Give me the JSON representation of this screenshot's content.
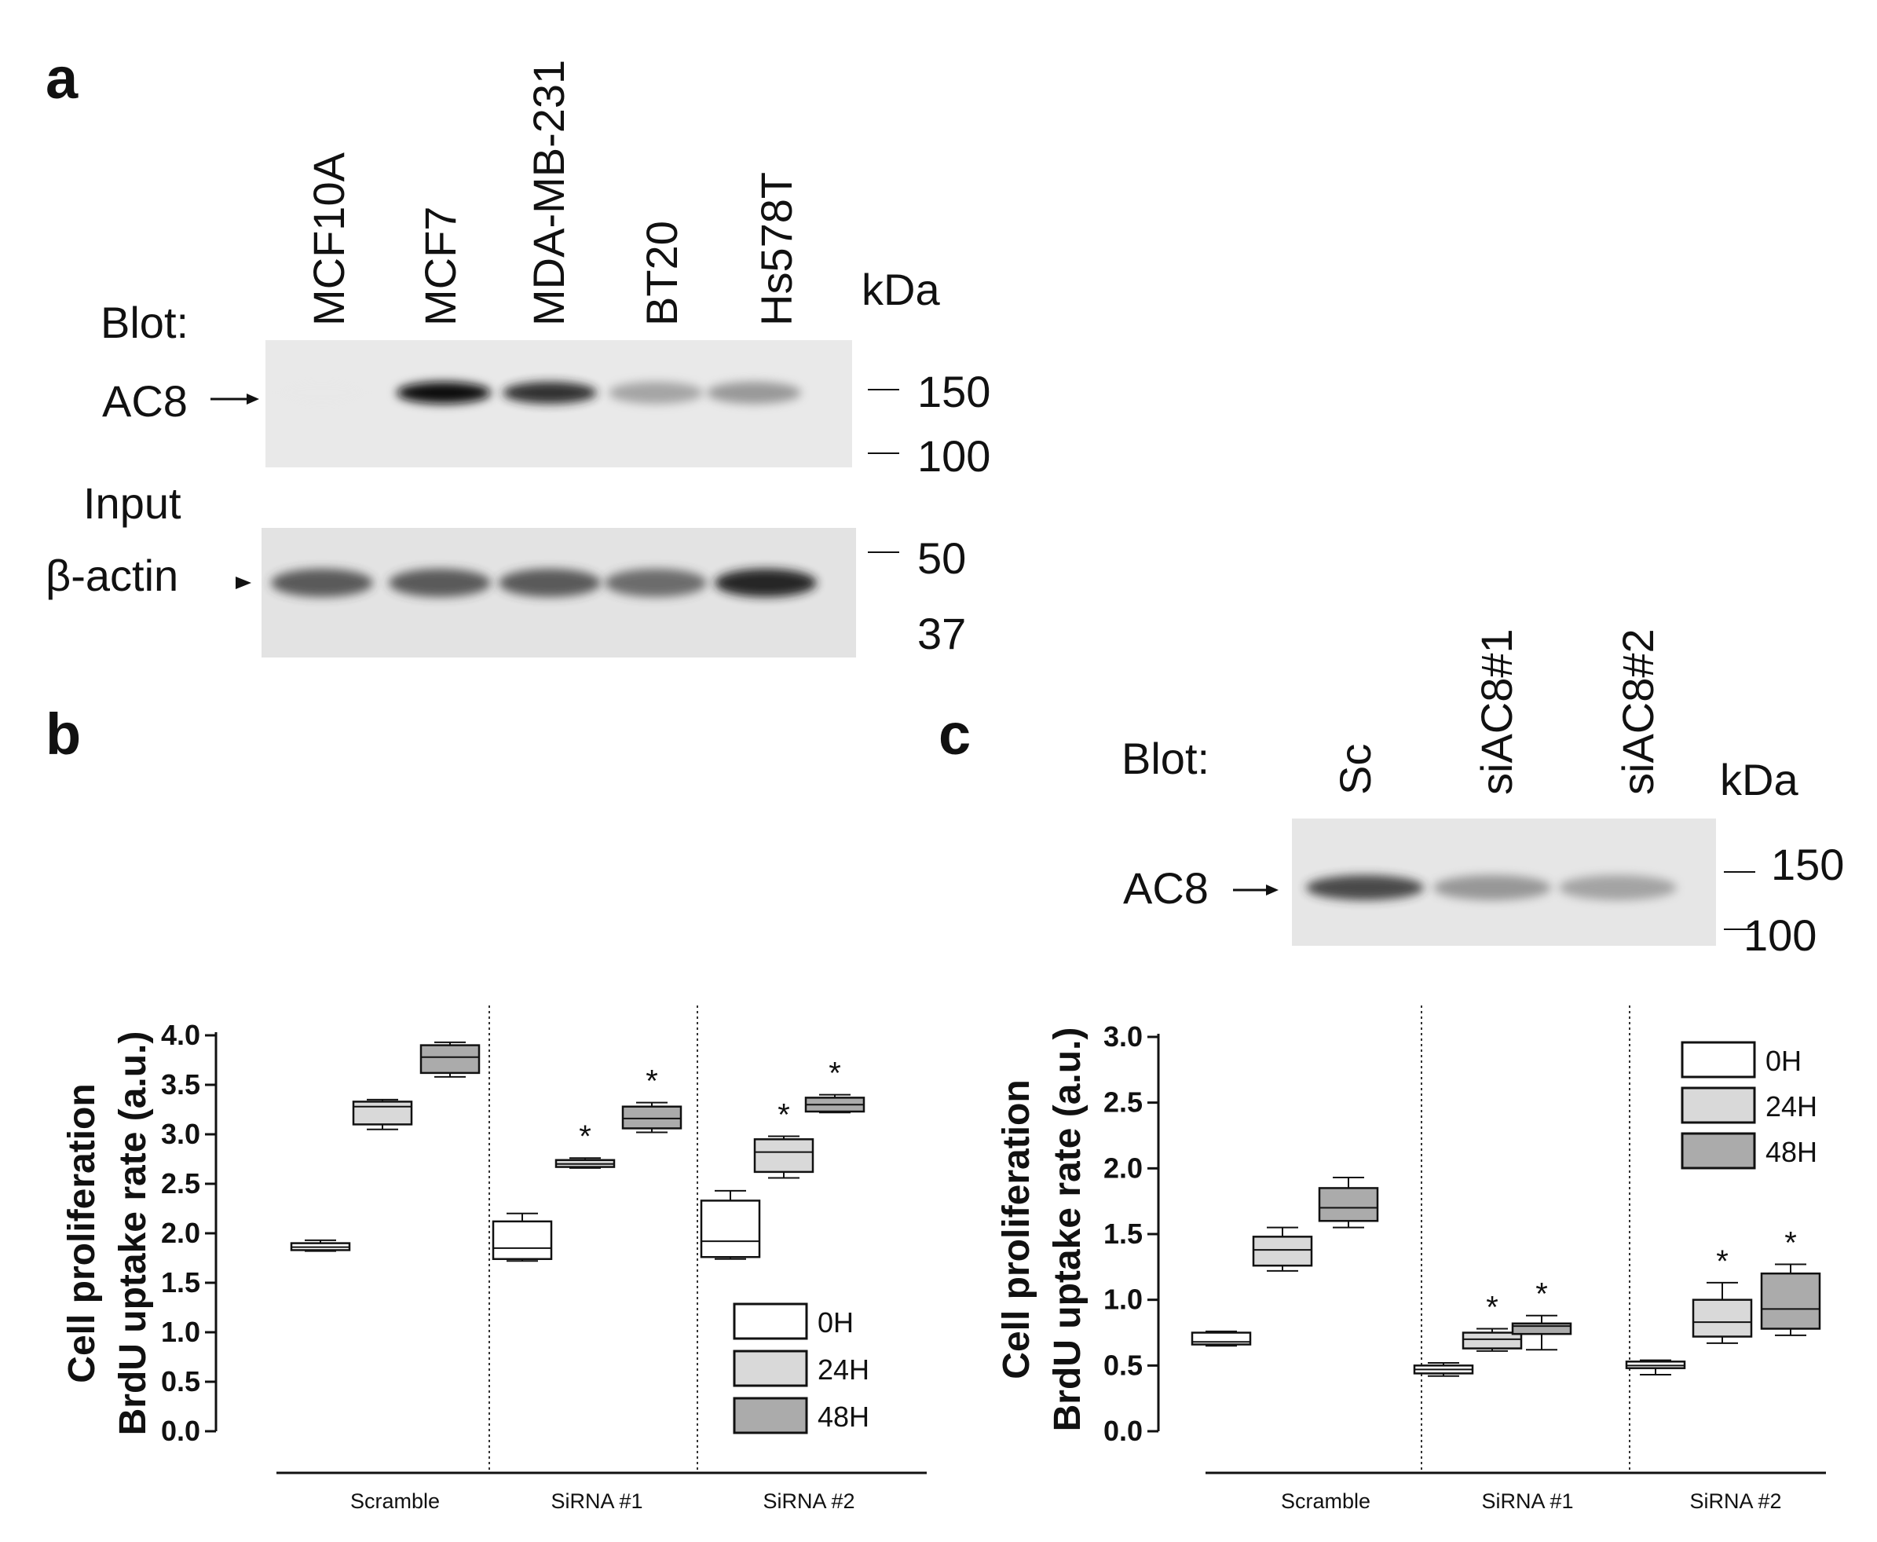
{
  "panels": {
    "a": {
      "letter": "a",
      "blot_label": "Blot:",
      "input_label": "Input",
      "protein_label": "AC8",
      "loading_label": "β-actin",
      "kda_label": "kDa",
      "lanes": [
        "MCF10A",
        "MCF7",
        "MDA-MB-231",
        "BT20",
        "Hs578T"
      ],
      "markers": [
        "150",
        "100",
        "50",
        "37"
      ],
      "ac8_band_intensity": [
        0.0,
        1.0,
        0.92,
        0.55,
        0.6
      ],
      "actin_band_intensity": [
        0.8,
        0.8,
        0.8,
        0.75,
        0.95
      ]
    },
    "b": {
      "letter": "b"
    },
    "c": {
      "letter": "c",
      "blot_label": "Blot:",
      "protein_label": "AC8",
      "kda_label": "kDa",
      "lanes": [
        "Sc",
        "siAC8#1",
        "siAC8#2"
      ],
      "markers": [
        "150",
        "100"
      ],
      "ac8_band_intensity": [
        0.85,
        0.6,
        0.55
      ]
    }
  },
  "chart_data": [
    {
      "type": "box",
      "panel": "b",
      "ylabel_lines": [
        "Cell proliferation",
        "BrdU uptake rate  (a.u.)"
      ],
      "xlabel": "",
      "ylim": [
        0,
        4.0
      ],
      "yticks": [
        "0.0",
        "0.5",
        "1.0",
        "1.5",
        "2.0",
        "2.5",
        "3.0",
        "3.5",
        "4.0"
      ],
      "categories": [
        "Scramble",
        "SiRNA #1",
        "SiRNA #2"
      ],
      "legend_position": "bottom-right",
      "series": [
        {
          "name": "0H",
          "color": "#ffffff",
          "boxes": [
            {
              "min": 1.82,
              "q1": 1.83,
              "median": 1.86,
              "q3": 1.9,
              "max": 1.93,
              "significant": false
            },
            {
              "min": 1.72,
              "q1": 1.74,
              "median": 1.85,
              "q3": 2.12,
              "max": 2.2,
              "significant": false
            },
            {
              "min": 1.74,
              "q1": 1.76,
              "median": 1.92,
              "q3": 2.33,
              "max": 2.43,
              "significant": false
            }
          ]
        },
        {
          "name": "24H",
          "color": "#d9d9d9",
          "boxes": [
            {
              "min": 3.05,
              "q1": 3.1,
              "median": 3.28,
              "q3": 3.33,
              "max": 3.35,
              "significant": false
            },
            {
              "min": 2.66,
              "q1": 2.67,
              "median": 2.7,
              "q3": 2.74,
              "max": 2.76,
              "significant": true
            },
            {
              "min": 2.56,
              "q1": 2.62,
              "median": 2.82,
              "q3": 2.95,
              "max": 2.98,
              "significant": true
            }
          ]
        },
        {
          "name": "48H",
          "color": "#ababab",
          "boxes": [
            {
              "min": 3.58,
              "q1": 3.62,
              "median": 3.78,
              "q3": 3.9,
              "max": 3.93,
              "significant": false
            },
            {
              "min": 3.02,
              "q1": 3.06,
              "median": 3.16,
              "q3": 3.28,
              "max": 3.32,
              "significant": true
            },
            {
              "min": 3.22,
              "q1": 3.23,
              "median": 3.3,
              "q3": 3.37,
              "max": 3.4,
              "significant": true
            }
          ]
        }
      ]
    },
    {
      "type": "box",
      "panel": "c",
      "ylabel_lines": [
        "Cell proliferation",
        "BrdU uptake rate  (a.u.)"
      ],
      "xlabel": "",
      "ylim": [
        0,
        3.0
      ],
      "yticks": [
        "0.0",
        "0.5",
        "1.0",
        "1.5",
        "2.0",
        "2.5",
        "3.0"
      ],
      "categories": [
        "Scramble",
        "SiRNA #1",
        "SiRNA #2"
      ],
      "legend_position": "top-right",
      "series": [
        {
          "name": "0H",
          "color": "#ffffff",
          "boxes": [
            {
              "min": 0.65,
              "q1": 0.66,
              "median": 0.68,
              "q3": 0.75,
              "max": 0.76,
              "significant": false
            },
            {
              "min": 0.42,
              "q1": 0.44,
              "median": 0.47,
              "q3": 0.5,
              "max": 0.52,
              "significant": false
            },
            {
              "min": 0.43,
              "q1": 0.48,
              "median": 0.5,
              "q3": 0.53,
              "max": 0.54,
              "significant": false
            }
          ]
        },
        {
          "name": "24H",
          "color": "#d9d9d9",
          "boxes": [
            {
              "min": 1.22,
              "q1": 1.26,
              "median": 1.38,
              "q3": 1.48,
              "max": 1.55,
              "significant": false
            },
            {
              "min": 0.61,
              "q1": 0.63,
              "median": 0.7,
              "q3": 0.75,
              "max": 0.78,
              "significant": true
            },
            {
              "min": 0.67,
              "q1": 0.72,
              "median": 0.83,
              "q3": 1.0,
              "max": 1.13,
              "significant": true
            }
          ]
        },
        {
          "name": "48H",
          "color": "#ababab",
          "boxes": [
            {
              "min": 1.55,
              "q1": 1.6,
              "median": 1.7,
              "q3": 1.85,
              "max": 1.93,
              "significant": false
            },
            {
              "min": 0.62,
              "q1": 0.74,
              "median": 0.8,
              "q3": 0.82,
              "max": 0.88,
              "significant": true
            },
            {
              "min": 0.73,
              "q1": 0.78,
              "median": 0.93,
              "q3": 1.2,
              "max": 1.27,
              "significant": true
            }
          ]
        }
      ]
    }
  ],
  "significance_marker": "*"
}
